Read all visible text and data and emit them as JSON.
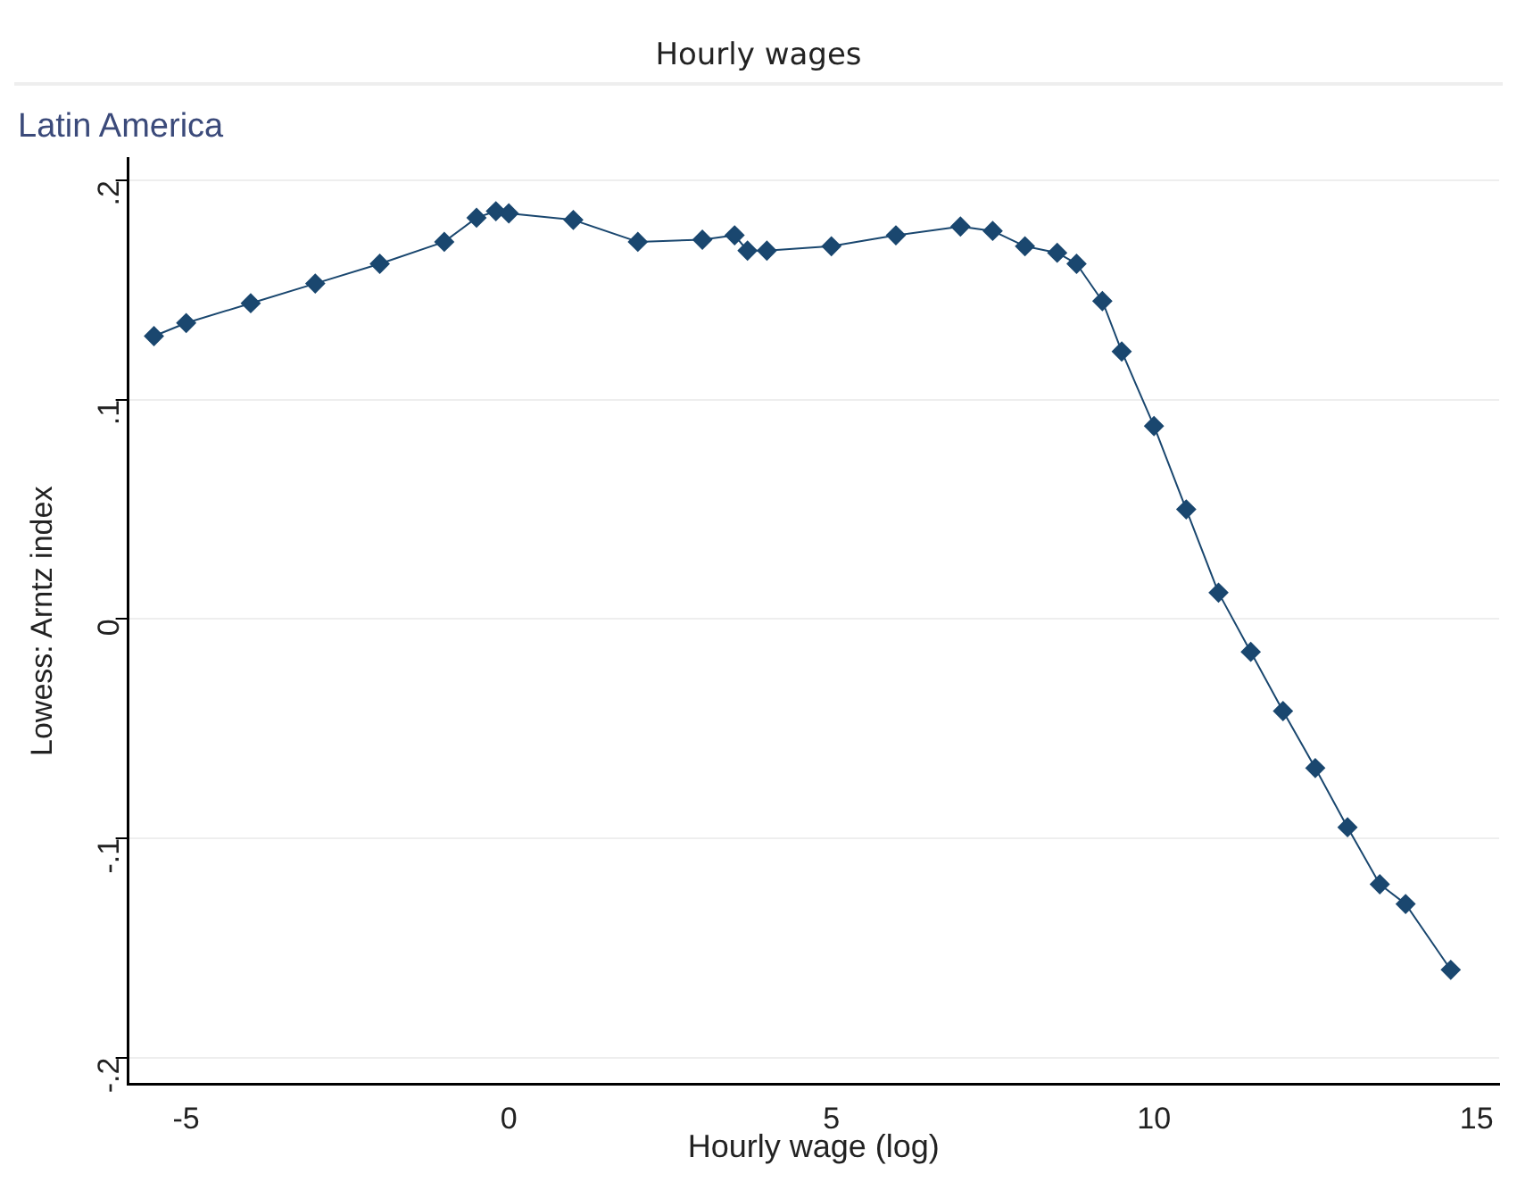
{
  "chart_data": {
    "type": "line",
    "title": "Hourly wages",
    "subtitle": "Latin America",
    "xlabel": "Hourly wage (log)",
    "ylabel": "Lowess: Arntz index",
    "series": [
      {
        "color": "#1a476f",
        "x": [
          -5.5,
          -5,
          -4,
          -3,
          -2,
          -1,
          -0.5,
          -0.2,
          0,
          1,
          2,
          3,
          3.5,
          3.7,
          4,
          5,
          6,
          7,
          7.5,
          8,
          8.5,
          8.8,
          9.2,
          9.5,
          10,
          10.5,
          11,
          11.5,
          12,
          12.5,
          13,
          13.5,
          13.9,
          14.6
        ],
        "values": [
          0.129,
          0.135,
          0.144,
          0.153,
          0.162,
          0.172,
          0.183,
          0.186,
          0.185,
          0.182,
          0.172,
          0.173,
          0.175,
          0.168,
          0.168,
          0.17,
          0.175,
          0.179,
          0.177,
          0.17,
          0.167,
          0.162,
          0.145,
          0.122,
          0.088,
          0.05,
          0.012,
          -0.015,
          -0.042,
          -0.068,
          -0.095,
          -0.121,
          -0.13,
          -0.16
        ]
      }
    ],
    "xlim": [
      -5.9,
      15.35
    ],
    "xticks": [
      -5,
      0,
      5,
      10,
      15
    ],
    "ylim": [
      -0.212,
      0.21
    ],
    "yticks": [
      {
        "value": -0.2,
        "label": "-.2"
      },
      {
        "value": -0.1,
        "label": "-.1"
      },
      0,
      {
        "value": 0.1,
        "label": ".1"
      },
      {
        "value": 0.2,
        "label": ".2"
      }
    ],
    "grid": "y",
    "legend": false,
    "marker": "diamond",
    "line_style": "solid"
  }
}
